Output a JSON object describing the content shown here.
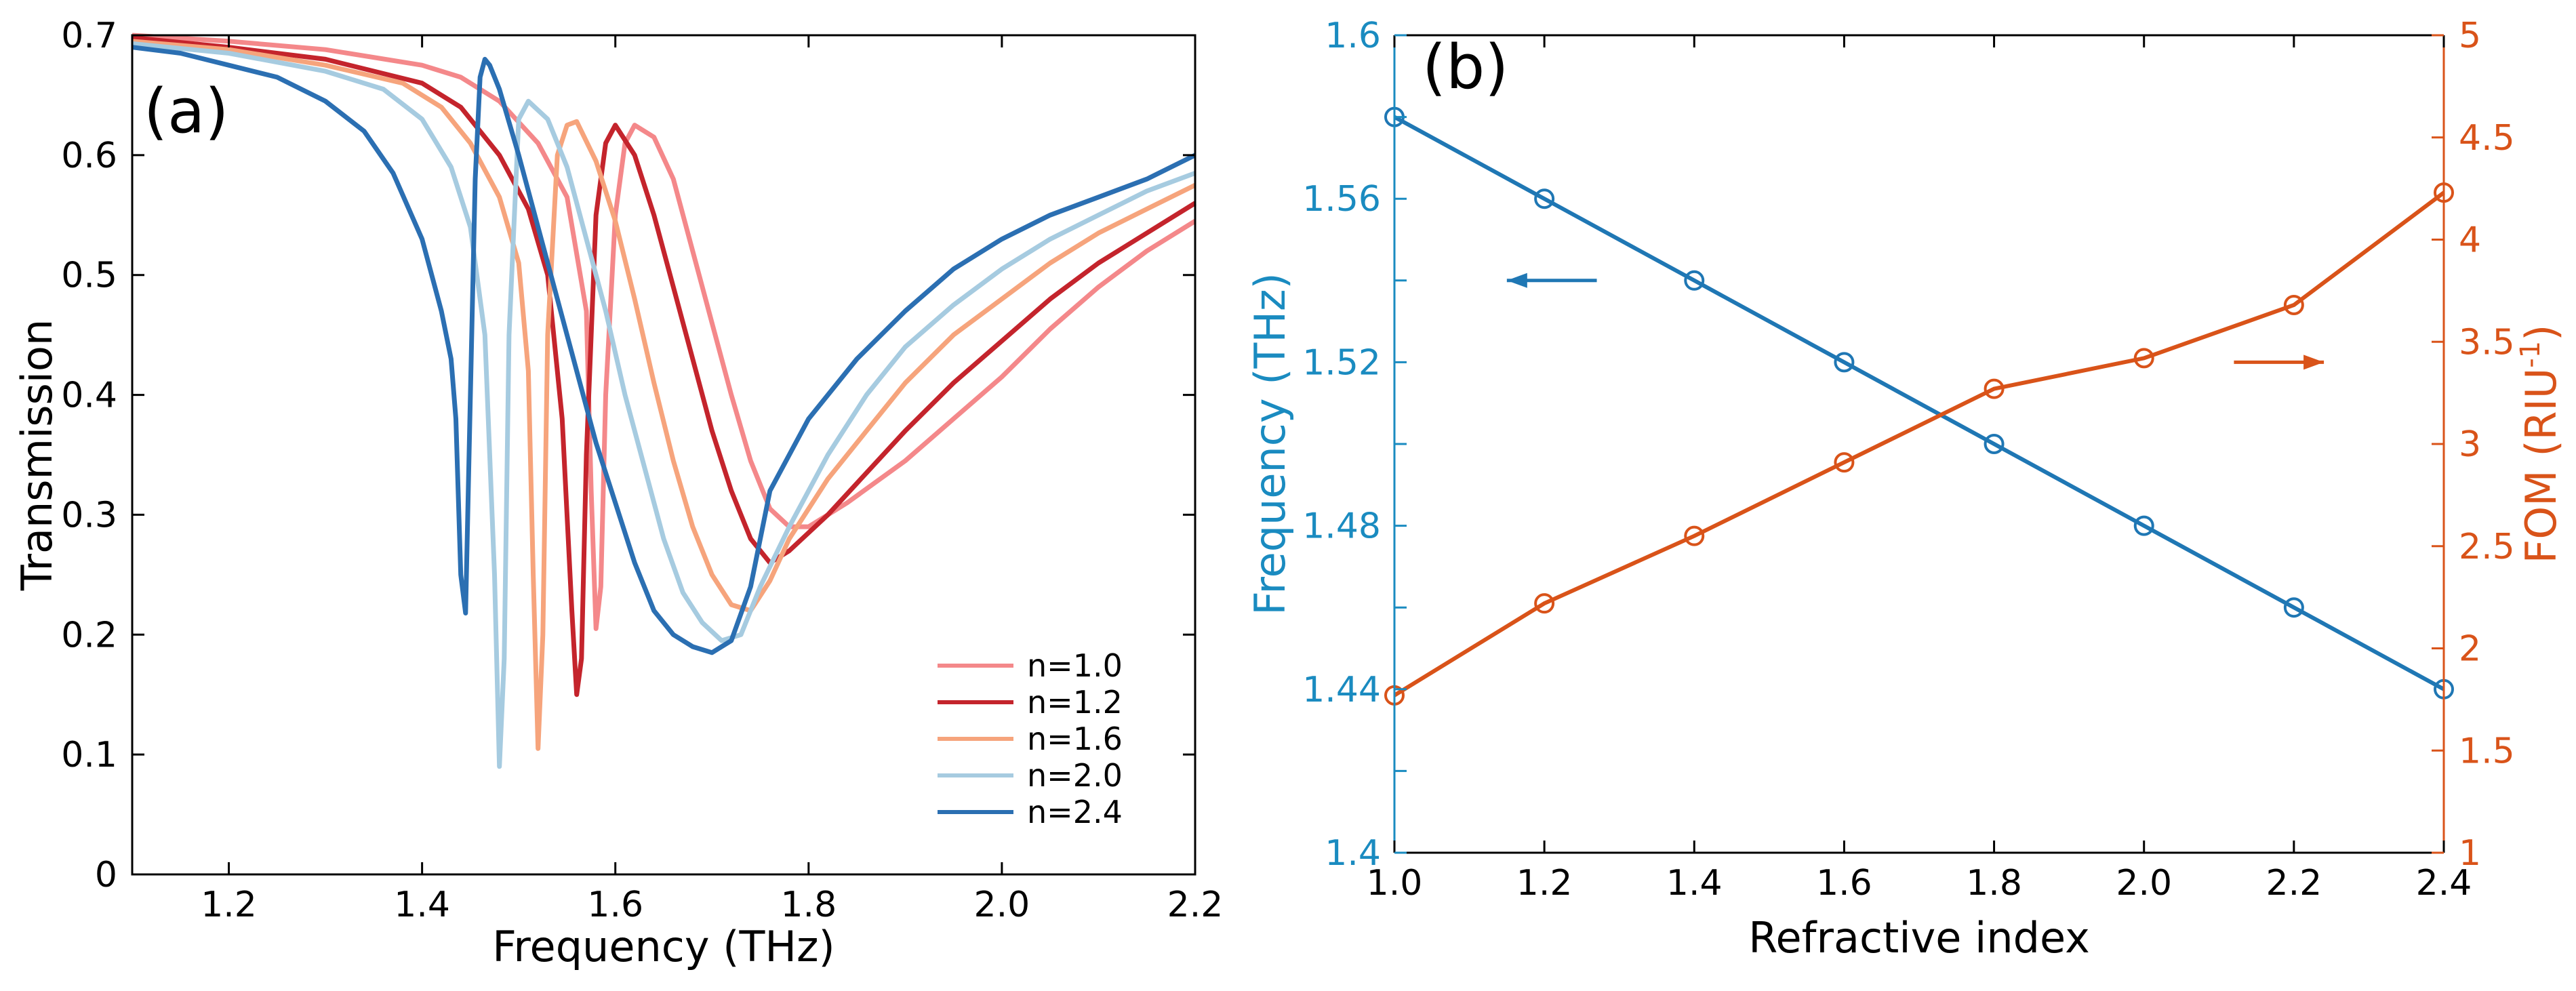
{
  "chart_data": [
    {
      "panel_label": "(a)",
      "type": "line",
      "xlabel": "Frequency (THz)",
      "ylabel": "Transmission",
      "xlim": [
        1.1,
        2.2
      ],
      "ylim": [
        0,
        0.7
      ],
      "xticks": [
        "1.2",
        "1.4",
        "1.6",
        "1.8",
        "2.0",
        "2.2"
      ],
      "xtick_values": [
        1.2,
        1.4,
        1.6,
        1.8,
        2.0,
        2.2
      ],
      "yticks": [
        "0",
        "0.1",
        "0.2",
        "0.3",
        "0.4",
        "0.5",
        "0.6",
        "0.7"
      ],
      "ytick_values": [
        0,
        0.1,
        0.2,
        0.3,
        0.4,
        0.5,
        0.6,
        0.7
      ],
      "legend_position": "bottom-right",
      "series": [
        {
          "name": "n=1.0",
          "color": "#f4888a",
          "points": [
            [
              1.1,
              0.7
            ],
            [
              1.2,
              0.695
            ],
            [
              1.3,
              0.688
            ],
            [
              1.4,
              0.675
            ],
            [
              1.44,
              0.665
            ],
            [
              1.48,
              0.645
            ],
            [
              1.52,
              0.61
            ],
            [
              1.55,
              0.565
            ],
            [
              1.57,
              0.47
            ],
            [
              1.575,
              0.32
            ],
            [
              1.58,
              0.205
            ],
            [
              1.585,
              0.24
            ],
            [
              1.59,
              0.4
            ],
            [
              1.6,
              0.55
            ],
            [
              1.61,
              0.61
            ],
            [
              1.62,
              0.625
            ],
            [
              1.64,
              0.615
            ],
            [
              1.66,
              0.58
            ],
            [
              1.68,
              0.52
            ],
            [
              1.7,
              0.46
            ],
            [
              1.72,
              0.4
            ],
            [
              1.74,
              0.345
            ],
            [
              1.76,
              0.305
            ],
            [
              1.78,
              0.29
            ],
            [
              1.8,
              0.29
            ],
            [
              1.84,
              0.31
            ],
            [
              1.9,
              0.345
            ],
            [
              1.95,
              0.38
            ],
            [
              2.0,
              0.415
            ],
            [
              2.05,
              0.455
            ],
            [
              2.1,
              0.49
            ],
            [
              2.15,
              0.52
            ],
            [
              2.2,
              0.545
            ]
          ]
        },
        {
          "name": "n=1.2",
          "color": "#c4242c",
          "points": [
            [
              1.1,
              0.698
            ],
            [
              1.2,
              0.69
            ],
            [
              1.3,
              0.68
            ],
            [
              1.4,
              0.66
            ],
            [
              1.44,
              0.64
            ],
            [
              1.48,
              0.6
            ],
            [
              1.51,
              0.555
            ],
            [
              1.53,
              0.5
            ],
            [
              1.545,
              0.38
            ],
            [
              1.555,
              0.22
            ],
            [
              1.56,
              0.15
            ],
            [
              1.565,
              0.18
            ],
            [
              1.57,
              0.35
            ],
            [
              1.58,
              0.55
            ],
            [
              1.59,
              0.61
            ],
            [
              1.6,
              0.625
            ],
            [
              1.62,
              0.6
            ],
            [
              1.64,
              0.55
            ],
            [
              1.66,
              0.49
            ],
            [
              1.68,
              0.43
            ],
            [
              1.7,
              0.37
            ],
            [
              1.72,
              0.32
            ],
            [
              1.74,
              0.28
            ],
            [
              1.76,
              0.26
            ],
            [
              1.78,
              0.27
            ],
            [
              1.82,
              0.3
            ],
            [
              1.86,
              0.335
            ],
            [
              1.9,
              0.37
            ],
            [
              1.95,
              0.41
            ],
            [
              2.0,
              0.445
            ],
            [
              2.05,
              0.48
            ],
            [
              2.1,
              0.51
            ],
            [
              2.15,
              0.535
            ],
            [
              2.2,
              0.56
            ]
          ]
        },
        {
          "name": "n=1.6",
          "color": "#f6a47c",
          "points": [
            [
              1.1,
              0.695
            ],
            [
              1.2,
              0.688
            ],
            [
              1.3,
              0.675
            ],
            [
              1.38,
              0.66
            ],
            [
              1.42,
              0.64
            ],
            [
              1.45,
              0.61
            ],
            [
              1.48,
              0.565
            ],
            [
              1.5,
              0.51
            ],
            [
              1.51,
              0.42
            ],
            [
              1.515,
              0.25
            ],
            [
              1.52,
              0.105
            ],
            [
              1.525,
              0.2
            ],
            [
              1.53,
              0.45
            ],
            [
              1.54,
              0.6
            ],
            [
              1.55,
              0.625
            ],
            [
              1.56,
              0.628
            ],
            [
              1.58,
              0.595
            ],
            [
              1.6,
              0.545
            ],
            [
              1.62,
              0.48
            ],
            [
              1.64,
              0.41
            ],
            [
              1.66,
              0.345
            ],
            [
              1.68,
              0.29
            ],
            [
              1.7,
              0.25
            ],
            [
              1.72,
              0.225
            ],
            [
              1.74,
              0.22
            ],
            [
              1.76,
              0.245
            ],
            [
              1.78,
              0.28
            ],
            [
              1.82,
              0.33
            ],
            [
              1.86,
              0.37
            ],
            [
              1.9,
              0.41
            ],
            [
              1.95,
              0.45
            ],
            [
              2.0,
              0.48
            ],
            [
              2.05,
              0.51
            ],
            [
              2.1,
              0.535
            ],
            [
              2.15,
              0.555
            ],
            [
              2.2,
              0.575
            ]
          ]
        },
        {
          "name": "n=2.0",
          "color": "#a6cbe0",
          "points": [
            [
              1.1,
              0.693
            ],
            [
              1.2,
              0.685
            ],
            [
              1.3,
              0.67
            ],
            [
              1.36,
              0.655
            ],
            [
              1.4,
              0.63
            ],
            [
              1.43,
              0.59
            ],
            [
              1.45,
              0.54
            ],
            [
              1.465,
              0.45
            ],
            [
              1.475,
              0.25
            ],
            [
              1.48,
              0.09
            ],
            [
              1.485,
              0.18
            ],
            [
              1.49,
              0.45
            ],
            [
              1.5,
              0.63
            ],
            [
              1.51,
              0.645
            ],
            [
              1.53,
              0.63
            ],
            [
              1.55,
              0.59
            ],
            [
              1.57,
              0.53
            ],
            [
              1.59,
              0.47
            ],
            [
              1.61,
              0.4
            ],
            [
              1.63,
              0.34
            ],
            [
              1.65,
              0.28
            ],
            [
              1.67,
              0.235
            ],
            [
              1.69,
              0.21
            ],
            [
              1.71,
              0.195
            ],
            [
              1.73,
              0.2
            ],
            [
              1.75,
              0.24
            ],
            [
              1.78,
              0.29
            ],
            [
              1.82,
              0.35
            ],
            [
              1.86,
              0.4
            ],
            [
              1.9,
              0.44
            ],
            [
              1.95,
              0.475
            ],
            [
              2.0,
              0.505
            ],
            [
              2.05,
              0.53
            ],
            [
              2.1,
              0.55
            ],
            [
              2.15,
              0.57
            ],
            [
              2.2,
              0.585
            ]
          ]
        },
        {
          "name": "n=2.4",
          "color": "#2b6fb2",
          "points": [
            [
              1.1,
              0.69
            ],
            [
              1.15,
              0.685
            ],
            [
              1.2,
              0.675
            ],
            [
              1.25,
              0.665
            ],
            [
              1.3,
              0.645
            ],
            [
              1.34,
              0.62
            ],
            [
              1.37,
              0.585
            ],
            [
              1.4,
              0.53
            ],
            [
              1.42,
              0.47
            ],
            [
              1.43,
              0.43
            ],
            [
              1.435,
              0.38
            ],
            [
              1.44,
              0.25
            ],
            [
              1.445,
              0.218
            ],
            [
              1.45,
              0.4
            ],
            [
              1.455,
              0.58
            ],
            [
              1.46,
              0.665
            ],
            [
              1.465,
              0.68
            ],
            [
              1.47,
              0.675
            ],
            [
              1.48,
              0.655
            ],
            [
              1.5,
              0.6
            ],
            [
              1.52,
              0.54
            ],
            [
              1.54,
              0.48
            ],
            [
              1.56,
              0.42
            ],
            [
              1.58,
              0.36
            ],
            [
              1.6,
              0.31
            ],
            [
              1.62,
              0.26
            ],
            [
              1.64,
              0.22
            ],
            [
              1.66,
              0.2
            ],
            [
              1.68,
              0.19
            ],
            [
              1.7,
              0.185
            ],
            [
              1.72,
              0.195
            ],
            [
              1.74,
              0.24
            ],
            [
              1.76,
              0.32
            ],
            [
              1.8,
              0.38
            ],
            [
              1.85,
              0.43
            ],
            [
              1.9,
              0.47
            ],
            [
              1.95,
              0.505
            ],
            [
              2.0,
              0.53
            ],
            [
              2.05,
              0.55
            ],
            [
              2.1,
              0.565
            ],
            [
              2.15,
              0.58
            ],
            [
              2.2,
              0.6
            ]
          ]
        }
      ]
    },
    {
      "panel_label": "(b)",
      "type": "line",
      "xlabel": "Refractive index",
      "ylabel_left": "Frequency (THz)",
      "ylabel_right_main": "FOM (RIU",
      "ylabel_right_sup": "-1",
      "ylabel_right_end": ")",
      "xlim": [
        1.0,
        2.4
      ],
      "ylim_left": [
        1.4,
        1.6
      ],
      "ylim_right": [
        1,
        5
      ],
      "xticks": [
        "1.0",
        "1.2",
        "1.4",
        "1.6",
        "1.8",
        "2.0",
        "2.2",
        "2.4"
      ],
      "xtick_values": [
        1.0,
        1.2,
        1.4,
        1.6,
        1.8,
        2.0,
        2.2,
        2.4
      ],
      "yticks_left": [
        "1.4",
        "1.44",
        "1.48",
        "1.52",
        "1.56",
        "1.6"
      ],
      "ytick_left_values": [
        1.4,
        1.44,
        1.48,
        1.52,
        1.56,
        1.6
      ],
      "yticks_right": [
        "1",
        "1.5",
        "2",
        "2.5",
        "3",
        "3.5",
        "4",
        "4.5",
        "5"
      ],
      "ytick_right_values": [
        1,
        1.5,
        2,
        2.5,
        3,
        3.5,
        4,
        4.5,
        5
      ],
      "left_color": "#1a8bc0",
      "right_color": "#d95319",
      "series": [
        {
          "name": "Frequency",
          "axis": "left",
          "color": "#1f77b4",
          "x": [
            1.0,
            1.2,
            1.4,
            1.6,
            1.8,
            2.0,
            2.2,
            2.4
          ],
          "values": [
            1.58,
            1.56,
            1.54,
            1.52,
            1.5,
            1.48,
            1.46,
            1.44
          ]
        },
        {
          "name": "FOM",
          "axis": "right",
          "color": "#d95319",
          "x": [
            1.0,
            1.2,
            1.4,
            1.6,
            1.8,
            2.0,
            2.2,
            2.4
          ],
          "values": [
            1.77,
            2.22,
            2.55,
            2.91,
            3.27,
            3.42,
            3.68,
            4.23
          ]
        }
      ],
      "arrows": [
        {
          "direction": "left",
          "axis": "left",
          "color": "#1f77b4",
          "x_from": 1.27,
          "x_to": 1.15,
          "y": 1.54
        },
        {
          "direction": "right",
          "axis": "right",
          "color": "#d95319",
          "x_from": 2.12,
          "x_to": 2.24,
          "y": 3.4
        }
      ]
    }
  ]
}
